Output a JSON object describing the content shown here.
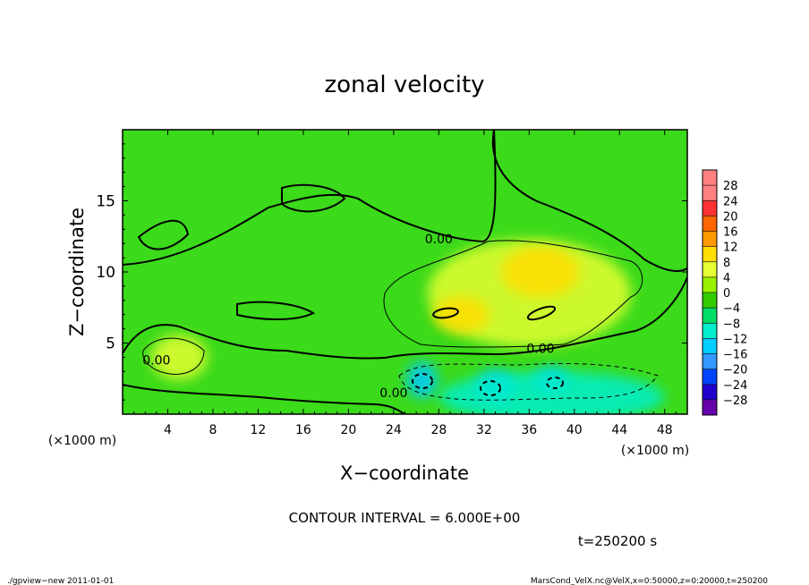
{
  "chart_data": {
    "type": "heatmap",
    "title": "zonal velocity",
    "xlabel": "X−coordinate",
    "ylabel": "Z−coordinate",
    "x_unit": "(×1000 m)",
    "y_unit": "(×1000 m)",
    "xlim": [
      0,
      50
    ],
    "ylim": [
      0,
      20
    ],
    "x_ticks": [
      4,
      8,
      12,
      16,
      20,
      24,
      28,
      32,
      36,
      40,
      44,
      48
    ],
    "y_ticks": [
      5,
      10,
      15
    ],
    "colorbar": {
      "levels": [
        28,
        24,
        20,
        16,
        12,
        8,
        4,
        0,
        -4,
        -8,
        -12,
        -16,
        -20,
        -24,
        -28
      ],
      "labels": [
        "28",
        "24",
        "20",
        "16",
        "12",
        "8",
        "4",
        "0",
        "−4",
        "−8",
        "−12",
        "−16",
        "−20",
        "−24",
        "−28"
      ],
      "colors": [
        "#ff8080",
        "#ff3333",
        "#ff6600",
        "#ff9900",
        "#ffdd00",
        "#e6ff33",
        "#99f000",
        "#33cc00",
        "#00dd66",
        "#00eecc",
        "#00ccff",
        "#3399ff",
        "#0044ff",
        "#2200cc",
        "#6600aa"
      ]
    },
    "background_colors": {
      "near_zero": "#3bda1a",
      "positive": "#c8ec3a",
      "negative": "#00e0b0"
    },
    "contour_labels": [
      {
        "text": "0.00",
        "x": 28,
        "z": 12
      },
      {
        "text": "0.00",
        "x": 37,
        "z": 4.3
      },
      {
        "text": "0.00",
        "x": 3,
        "z": 3.5
      },
      {
        "text": "0.00",
        "x": 24,
        "z": 1.2
      }
    ],
    "blobs": [
      {
        "x": 5,
        "z": 4,
        "rx": 2.5,
        "rz": 1.6,
        "level": 8
      },
      {
        "x": 36,
        "z": 8.5,
        "rx": 9,
        "rz": 3.8,
        "level": 8
      },
      {
        "x": 37,
        "z": 10,
        "rx": 3.5,
        "rz": 1.8,
        "level": 12
      },
      {
        "x": 30,
        "z": 7,
        "rx": 2.5,
        "rz": 1.3,
        "level": 12
      },
      {
        "x": 26.5,
        "z": 2.4,
        "rx": 1.4,
        "rz": 1.3,
        "level": -12
      },
      {
        "x": 33,
        "z": 1.9,
        "rx": 1.8,
        "rz": 1.2,
        "level": -12
      },
      {
        "x": 38,
        "z": 2.3,
        "rx": 1.6,
        "rz": 1.0,
        "level": -12
      },
      {
        "x": 38,
        "z": 1.2,
        "rx": 10,
        "rz": 1.8,
        "level": -8
      }
    ],
    "contour_interval": "CONTOUR INTERVAL = 6.000E+00",
    "time_label": "t=250200 s"
  },
  "footer": {
    "left": "./gpview−new  2011-01-01",
    "right": "MarsCond_VelX.nc@VelX,x=0:50000,z=0:20000,t=250200"
  }
}
